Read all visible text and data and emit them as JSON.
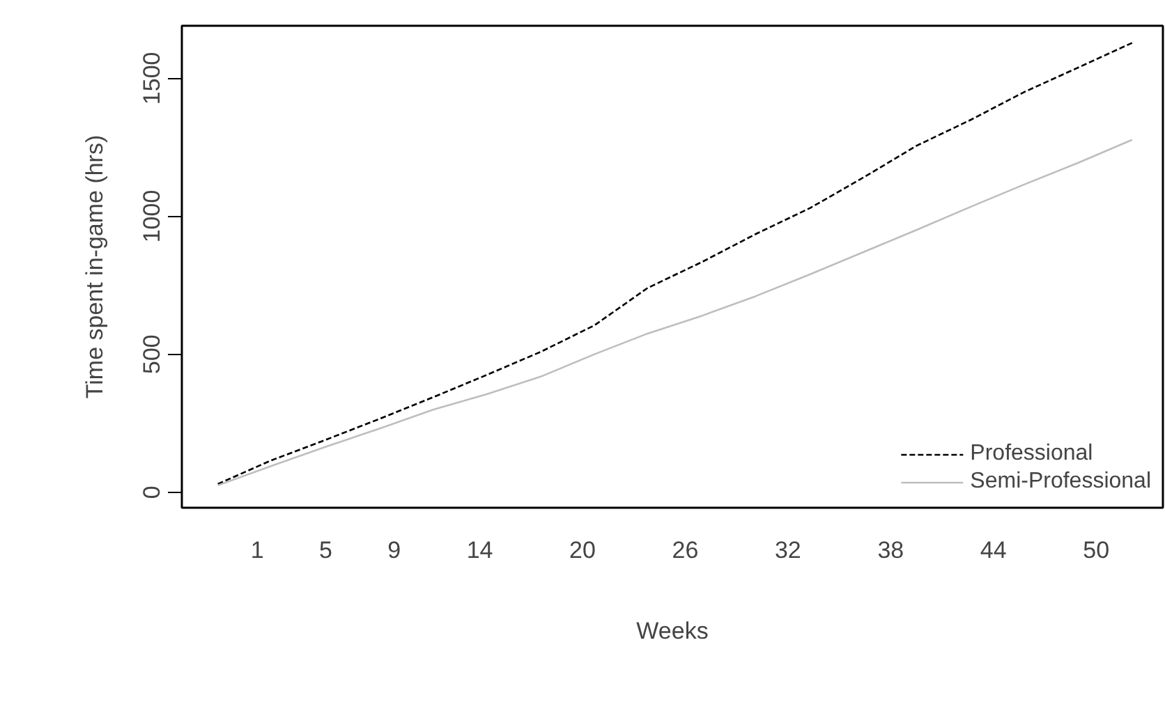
{
  "chart_data": {
    "type": "line",
    "xlabel": "Weeks",
    "ylabel": "Time spent in-game (hrs)",
    "x": [
      -1.3,
      1.8,
      5.0,
      8.1,
      11.3,
      14.4,
      17.6,
      20.7,
      23.8,
      27.0,
      30.1,
      33.3,
      36.4,
      39.5,
      42.7,
      45.8,
      49.0,
      52.1
    ],
    "series": [
      {
        "name": "Professional",
        "color": "#000000",
        "line_style": "dashed",
        "values": [
          30,
          115,
          190,
          265,
          345,
          425,
          510,
          605,
          740,
          835,
          935,
          1030,
          1140,
          1255,
          1350,
          1450,
          1540,
          1628
        ]
      },
      {
        "name": "Semi-Professional",
        "color": "#bebebe",
        "line_style": "solid",
        "values": [
          25,
          95,
          165,
          230,
          300,
          355,
          420,
          500,
          575,
          640,
          710,
          790,
          870,
          950,
          1035,
          1115,
          1195,
          1277
        ]
      }
    ],
    "xlim": [
      -3.4,
      53.9
    ],
    "ylim": [
      -56,
      1690
    ],
    "xticks": [
      1,
      5,
      9,
      14,
      20,
      26,
      32,
      38,
      44,
      50
    ],
    "yticks": [
      0,
      500,
      1000,
      1500
    ],
    "grid": false,
    "legend": "bottom right"
  }
}
